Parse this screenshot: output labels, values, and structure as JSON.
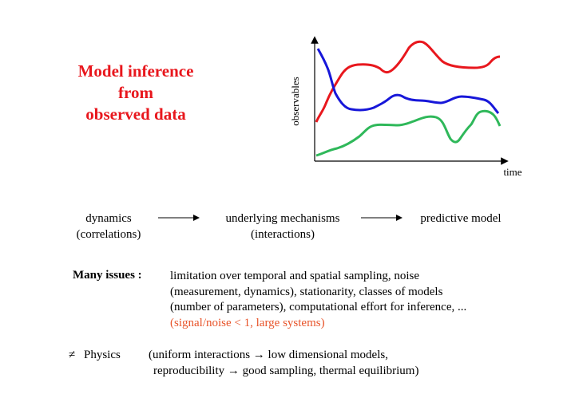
{
  "title": {
    "line1": "Model inference",
    "line2": "from",
    "line3": "observed data",
    "color": "#e8171d"
  },
  "plot": {
    "ylabel": "observables",
    "xlabel": "time",
    "curve_colors": {
      "red": "#e8171d",
      "blue": "#1717d9",
      "green": "#2fb85a"
    }
  },
  "flow": {
    "step1": {
      "line1": "dynamics",
      "line2": "(correlations)"
    },
    "step2": {
      "line1": "underlying mechanisms",
      "line2": "(interactions)"
    },
    "step3": {
      "line1": "predictive model"
    }
  },
  "issues": {
    "label": "Many issues :",
    "lines": [
      "limitation over temporal and spatial sampling, noise",
      "(measurement, dynamics), stationarity, classes of models",
      "(number of parameters), computational effort for inference, ...",
      "(signal/noise < 1, large systems)"
    ],
    "highlight_color": "#e8542a"
  },
  "physics": {
    "symbol": "≠",
    "label": "Physics",
    "line1": "(uniform interactions → low dimensional models,",
    "line2": "reproducibility → good sampling, thermal equilibrium)"
  }
}
